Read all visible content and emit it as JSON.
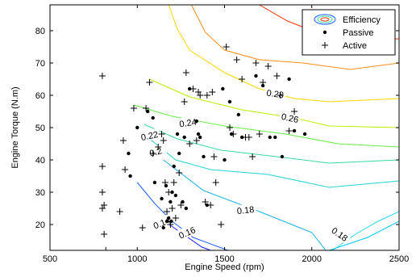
{
  "chart_data": {
    "type": "scatter",
    "title": "",
    "xlabel": "Engine Speed (rpm)",
    "ylabel": "Engine Torque (N.m)",
    "xlim": [
      500,
      2500
    ],
    "ylim": [
      12,
      88
    ],
    "xticks": [
      500,
      1000,
      1500,
      2000,
      2500
    ],
    "yticks": [
      20,
      30,
      40,
      50,
      60,
      70,
      80
    ],
    "grid": false,
    "legend_position": "top-right",
    "legend": [
      {
        "label": "Efficiency",
        "symbol": "contour"
      },
      {
        "label": "Passive",
        "symbol": "dot"
      },
      {
        "label": "Active",
        "symbol": "plus"
      }
    ],
    "contours": [
      {
        "level": "0.14",
        "color": "#1a1aff",
        "points": [
          [
            1130,
            22
          ],
          [
            1250,
            17.5
          ],
          [
            1370,
            13
          ],
          [
            1420,
            12
          ]
        ],
        "label": {
          "x": 1140,
          "y": 20.5,
          "angle": 22
        }
      },
      {
        "level": "0.16",
        "color": "#1a5cff",
        "points": [
          [
            1000,
            33
          ],
          [
            1100,
            26.5
          ],
          [
            1200,
            21
          ],
          [
            1320,
            16
          ],
          [
            1520,
            12
          ]
        ],
        "label": {
          "x": 1285,
          "y": 17.5,
          "angle": 23
        }
      },
      {
        "level": "0.18",
        "color": "#1ab0e6",
        "points": [
          [
            1150,
            40
          ],
          [
            1380,
            30.5
          ],
          [
            1700,
            24
          ],
          [
            2000,
            17.5
          ],
          [
            2080,
            12
          ]
        ],
        "label": {
          "x": 1620,
          "y": 24.5,
          "angle": 6
        }
      },
      {
        "level": "0.18",
        "color": "#2ad4f0",
        "points": [
          [
            2120,
            12
          ],
          [
            2250,
            17
          ],
          [
            2380,
            21
          ],
          [
            2500,
            24
          ]
        ],
        "label": {
          "x": 2160,
          "y": 17,
          "angle": -35
        }
      },
      {
        "level": "",
        "color": "#00c8ff",
        "points": [
          [
            2100,
            12
          ],
          [
            2320,
            16
          ],
          [
            2500,
            21
          ]
        ],
        "label": null
      },
      {
        "level": "0.2",
        "color": "#22d3d3",
        "points": [
          [
            1060,
            47
          ],
          [
            1220,
            40
          ],
          [
            1420,
            37
          ],
          [
            1750,
            35.5
          ],
          [
            2100,
            31.5
          ],
          [
            2500,
            33.5
          ]
        ],
        "label": {
          "x": 1105,
          "y": 42.5,
          "angle": 15
        }
      },
      {
        "level": "0.22",
        "color": "#38d8a0",
        "points": [
          [
            1040,
            51
          ],
          [
            1230,
            46.5
          ],
          [
            1480,
            43
          ],
          [
            1800,
            41
          ],
          [
            2100,
            39
          ],
          [
            2500,
            40
          ]
        ],
        "label": {
          "x": 1070,
          "y": 47.5,
          "angle": 12
        }
      },
      {
        "level": "0.24",
        "color": "#66ee44",
        "points": [
          [
            980,
            57
          ],
          [
            1200,
            53.5
          ],
          [
            1500,
            50.5
          ],
          [
            1850,
            48
          ],
          [
            2150,
            45
          ],
          [
            2500,
            44
          ]
        ],
        "label": {
          "x": 1290,
          "y": 51.5,
          "angle": 8
        }
      },
      {
        "level": "0.26",
        "color": "#b8f000",
        "points": [
          [
            1070,
            65
          ],
          [
            1300,
            59.5
          ],
          [
            1600,
            55.5
          ],
          [
            1900,
            53
          ],
          [
            2100,
            50.5
          ],
          [
            2500,
            50
          ]
        ],
        "label": {
          "x": 1875,
          "y": 53,
          "angle": -12
        }
      },
      {
        "level": "0.28",
        "color": "#ffd700",
        "points": [
          [
            1180,
            88
          ],
          [
            1230,
            80.5
          ],
          [
            1300,
            74
          ],
          [
            1500,
            67
          ],
          [
            1700,
            62
          ],
          [
            1900,
            59
          ],
          [
            2100,
            58
          ],
          [
            2500,
            59
          ]
        ],
        "label": {
          "x": 1790,
          "y": 60.5,
          "angle": -8
        }
      },
      {
        "level": "",
        "color": "#ff8c1a",
        "points": [
          [
            1310,
            88
          ],
          [
            1390,
            79.5
          ],
          [
            1500,
            74
          ],
          [
            1700,
            71
          ],
          [
            1950,
            70
          ],
          [
            2220,
            68
          ],
          [
            2500,
            70
          ]
        ],
        "label": null
      },
      {
        "level": "",
        "color": "#ff3300",
        "points": [
          [
            1700,
            88
          ],
          [
            1860,
            83
          ],
          [
            2050,
            79
          ],
          [
            2250,
            77
          ],
          [
            2500,
            77.5
          ]
        ],
        "label": null
      }
    ],
    "series": [
      {
        "name": "Passive",
        "marker": "dot",
        "points": [
          [
            950,
            42
          ],
          [
            960,
            35
          ],
          [
            1000,
            50
          ],
          [
            1060,
            55
          ],
          [
            1090,
            53
          ],
          [
            1100,
            33
          ],
          [
            1140,
            28
          ],
          [
            1150,
            19
          ],
          [
            1165,
            32
          ],
          [
            1170,
            21
          ],
          [
            1180,
            22
          ],
          [
            1190,
            27
          ],
          [
            1195,
            21
          ],
          [
            1200,
            30
          ],
          [
            1210,
            38
          ],
          [
            1220,
            29
          ],
          [
            1230,
            48
          ],
          [
            1240,
            42
          ],
          [
            1260,
            27
          ],
          [
            1270,
            47
          ],
          [
            1280,
            25
          ],
          [
            1300,
            62
          ],
          [
            1340,
            52
          ],
          [
            1350,
            48
          ],
          [
            1360,
            47
          ],
          [
            1380,
            41
          ],
          [
            1400,
            26
          ],
          [
            1490,
            62
          ],
          [
            1500,
            40
          ],
          [
            1530,
            58
          ],
          [
            1540,
            48
          ],
          [
            1580,
            54
          ],
          [
            1600,
            47
          ],
          [
            1680,
            66
          ],
          [
            1720,
            63
          ],
          [
            1760,
            47
          ],
          [
            1790,
            47
          ],
          [
            1830,
            41
          ],
          [
            1870,
            65
          ],
          [
            1900,
            49
          ],
          [
            1960,
            48
          ]
        ]
      },
      {
        "name": "Active",
        "marker": "plus",
        "points": [
          [
            800,
            66
          ],
          [
            800,
            38
          ],
          [
            800,
            30
          ],
          [
            800,
            25
          ],
          [
            810,
            26
          ],
          [
            810,
            17
          ],
          [
            820,
            12
          ],
          [
            900,
            24
          ],
          [
            920,
            46
          ],
          [
            930,
            37
          ],
          [
            980,
            56
          ],
          [
            1030,
            19
          ],
          [
            1050,
            56
          ],
          [
            1070,
            64
          ],
          [
            1090,
            42
          ],
          [
            1120,
            44
          ],
          [
            1140,
            48
          ],
          [
            1150,
            46
          ],
          [
            1160,
            33
          ],
          [
            1170,
            24
          ],
          [
            1180,
            30
          ],
          [
            1190,
            20
          ],
          [
            1200,
            25
          ],
          [
            1210,
            33
          ],
          [
            1220,
            22
          ],
          [
            1240,
            36
          ],
          [
            1250,
            26
          ],
          [
            1270,
            58
          ],
          [
            1280,
            67
          ],
          [
            1300,
            45
          ],
          [
            1320,
            62
          ],
          [
            1340,
            46
          ],
          [
            1350,
            61
          ],
          [
            1360,
            60
          ],
          [
            1390,
            27
          ],
          [
            1400,
            60
          ],
          [
            1420,
            26
          ],
          [
            1430,
            61
          ],
          [
            1440,
            41
          ],
          [
            1450,
            33
          ],
          [
            1480,
            20
          ],
          [
            1510,
            75
          ],
          [
            1530,
            50
          ],
          [
            1550,
            48
          ],
          [
            1570,
            71
          ],
          [
            1600,
            65
          ],
          [
            1620,
            47
          ],
          [
            1640,
            47
          ],
          [
            1660,
            41
          ],
          [
            1680,
            70
          ],
          [
            1700,
            48
          ],
          [
            1720,
            64
          ],
          [
            1750,
            69
          ],
          [
            1800,
            66
          ],
          [
            1820,
            60
          ],
          [
            1870,
            49
          ],
          [
            1900,
            55
          ]
        ]
      }
    ]
  }
}
